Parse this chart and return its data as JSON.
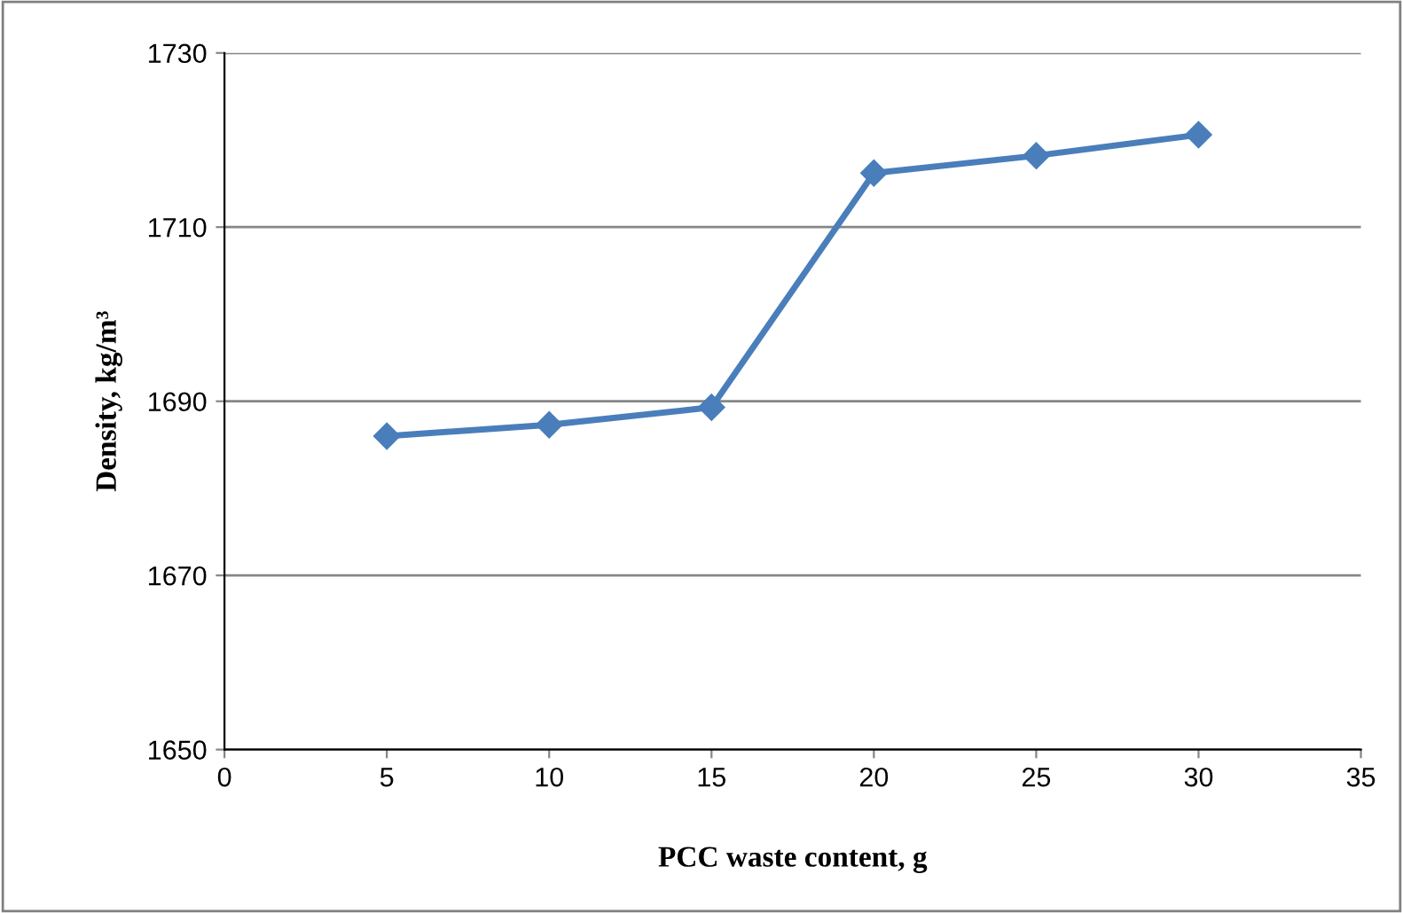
{
  "chart_data": {
    "type": "line",
    "xlabel": "PCC waste content, g",
    "ylabel": "Density, kg/m³",
    "x": [
      5,
      10,
      15,
      20,
      25,
      30
    ],
    "series": [
      {
        "color": "#4a7ebb",
        "values": [
          1686.0,
          1687.3,
          1689.3,
          1716.2,
          1718.2,
          1720.6
        ]
      }
    ],
    "xlim": [
      0,
      35
    ],
    "xticks": [
      0,
      5,
      10,
      15,
      20,
      25,
      30,
      35
    ],
    "ylim": [
      1650,
      1730
    ],
    "yticks": [
      1650,
      1670,
      1690,
      1710,
      1730
    ],
    "grid": "y",
    "marker": "diamond",
    "line_style": "solid"
  }
}
